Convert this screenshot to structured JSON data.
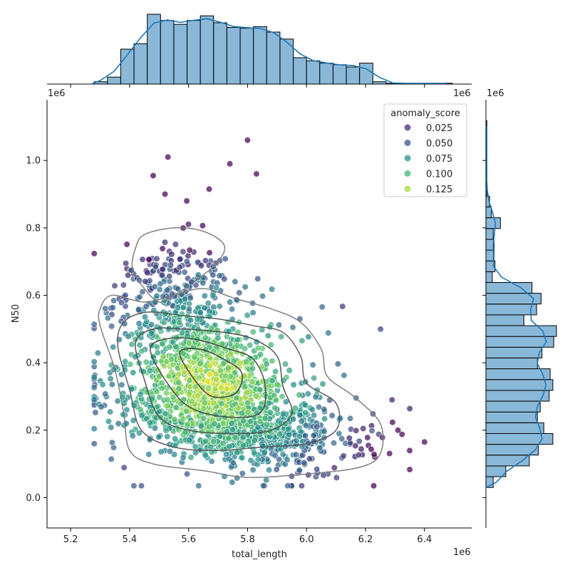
{
  "chart_data": {
    "type": "scatter",
    "x": {
      "label": "total_length",
      "offset_label": "1e6",
      "range": [
        5.12,
        6.56
      ],
      "ticks": [
        5.2,
        5.4,
        5.6,
        5.8,
        6.0,
        6.2,
        6.4
      ]
    },
    "y": {
      "label": "N50",
      "offset_label": "1e6",
      "range": [
        -0.09,
        1.18
      ],
      "ticks": [
        0.0,
        0.2,
        0.4,
        0.6,
        0.8,
        1.0
      ]
    },
    "legend": {
      "title": "anomaly_score",
      "position": "top-right",
      "entries": [
        {
          "label": "0.025",
          "color": "#472d7b"
        },
        {
          "label": "0.050",
          "color": "#3b528b"
        },
        {
          "label": "0.075",
          "color": "#21918c"
        },
        {
          "label": "0.100",
          "color": "#3cbb75"
        },
        {
          "label": "0.125",
          "color": "#a5db36"
        }
      ]
    },
    "points": {
      "count": 2000,
      "cluster_center": {
        "total_length": 5.68,
        "N50": 0.35
      },
      "x_range": [
        5.27,
        6.4
      ],
      "y_range": [
        0.03,
        1.06
      ],
      "outliers": [
        {
          "total_length": 5.8,
          "N50": 1.06
        },
        {
          "total_length": 5.53,
          "N50": 1.01
        },
        {
          "total_length": 5.74,
          "N50": 0.99
        },
        {
          "total_length": 5.83,
          "N50": 0.96
        },
        {
          "total_length": 5.48,
          "N50": 0.955
        },
        {
          "total_length": 5.67,
          "N50": 0.915
        },
        {
          "total_length": 5.52,
          "N50": 0.9
        },
        {
          "total_length": 6.4,
          "N50": 0.165
        },
        {
          "total_length": 6.31,
          "N50": 0.2
        },
        {
          "total_length": 6.29,
          "N50": 0.29
        },
        {
          "total_length": 5.28,
          "N50": 0.16
        }
      ]
    },
    "kde_contours": [
      [
        [
          5.42,
          0.74
        ],
        [
          5.45,
          0.78
        ],
        [
          5.55,
          0.8
        ],
        [
          5.65,
          0.79
        ],
        [
          5.72,
          0.75
        ],
        [
          5.7,
          0.7
        ],
        [
          5.62,
          0.64
        ],
        [
          5.55,
          0.6
        ],
        [
          5.5,
          0.58
        ],
        [
          5.45,
          0.62
        ],
        [
          5.41,
          0.68
        ]
      ],
      [
        [
          5.3,
          0.51
        ],
        [
          5.35,
          0.38
        ],
        [
          5.38,
          0.25
        ],
        [
          5.4,
          0.14
        ],
        [
          5.48,
          0.1
        ],
        [
          5.65,
          0.08
        ],
        [
          5.8,
          0.06
        ],
        [
          6.0,
          0.07
        ],
        [
          6.18,
          0.09
        ],
        [
          6.25,
          0.13
        ],
        [
          6.25,
          0.22
        ],
        [
          6.16,
          0.3
        ],
        [
          6.07,
          0.36
        ],
        [
          6.05,
          0.44
        ],
        [
          5.98,
          0.52
        ],
        [
          5.88,
          0.56
        ],
        [
          5.76,
          0.59
        ],
        [
          5.65,
          0.62
        ],
        [
          5.55,
          0.6
        ],
        [
          5.45,
          0.58
        ],
        [
          5.34,
          0.6
        ],
        [
          5.3,
          0.56
        ]
      ],
      [
        [
          5.36,
          0.45
        ],
        [
          5.4,
          0.32
        ],
        [
          5.44,
          0.2
        ],
        [
          5.55,
          0.15
        ],
        [
          5.7,
          0.14
        ],
        [
          5.85,
          0.15
        ],
        [
          6.0,
          0.16
        ],
        [
          6.1,
          0.2
        ],
        [
          6.1,
          0.28
        ],
        [
          6.0,
          0.34
        ],
        [
          5.98,
          0.42
        ],
        [
          5.92,
          0.49
        ],
        [
          5.82,
          0.51
        ],
        [
          5.7,
          0.53
        ],
        [
          5.58,
          0.54
        ],
        [
          5.46,
          0.55
        ],
        [
          5.38,
          0.52
        ]
      ],
      [
        [
          5.42,
          0.46
        ],
        [
          5.45,
          0.35
        ],
        [
          5.5,
          0.24
        ],
        [
          5.6,
          0.2
        ],
        [
          5.75,
          0.19
        ],
        [
          5.88,
          0.2
        ],
        [
          5.95,
          0.25
        ],
        [
          5.92,
          0.33
        ],
        [
          5.9,
          0.42
        ],
        [
          5.82,
          0.47
        ],
        [
          5.72,
          0.49
        ],
        [
          5.58,
          0.5
        ],
        [
          5.48,
          0.5
        ]
      ],
      [
        [
          5.47,
          0.44
        ],
        [
          5.52,
          0.35
        ],
        [
          5.6,
          0.27
        ],
        [
          5.72,
          0.24
        ],
        [
          5.84,
          0.25
        ],
        [
          5.86,
          0.33
        ],
        [
          5.82,
          0.41
        ],
        [
          5.74,
          0.44
        ],
        [
          5.62,
          0.47
        ],
        [
          5.52,
          0.47
        ]
      ],
      [
        [
          5.57,
          0.43
        ],
        [
          5.62,
          0.35
        ],
        [
          5.68,
          0.3
        ],
        [
          5.76,
          0.31
        ],
        [
          5.78,
          0.37
        ],
        [
          5.72,
          0.41
        ],
        [
          5.64,
          0.44
        ]
      ]
    ],
    "top_histogram": {
      "bin_edges_start": 5.28,
      "bin_width": 0.045,
      "counts": [
        3,
        9,
        45,
        52,
        90,
        82,
        77,
        82,
        88,
        79,
        73,
        72,
        74,
        67,
        58,
        34,
        30,
        27,
        25,
        22,
        27,
        3,
        1,
        1,
        1,
        1,
        1
      ]
    },
    "right_histogram": {
      "bin_edges_start": 0.03,
      "bin_width": 0.032,
      "counts": [
        8,
        22,
        48,
        58,
        74,
        64,
        57,
        60,
        70,
        74,
        71,
        57,
        62,
        75,
        78,
        42,
        56,
        61,
        51,
        7,
        10,
        9,
        9,
        8,
        16,
        6,
        4,
        1,
        1,
        1,
        1,
        1,
        1,
        1
      ]
    }
  }
}
